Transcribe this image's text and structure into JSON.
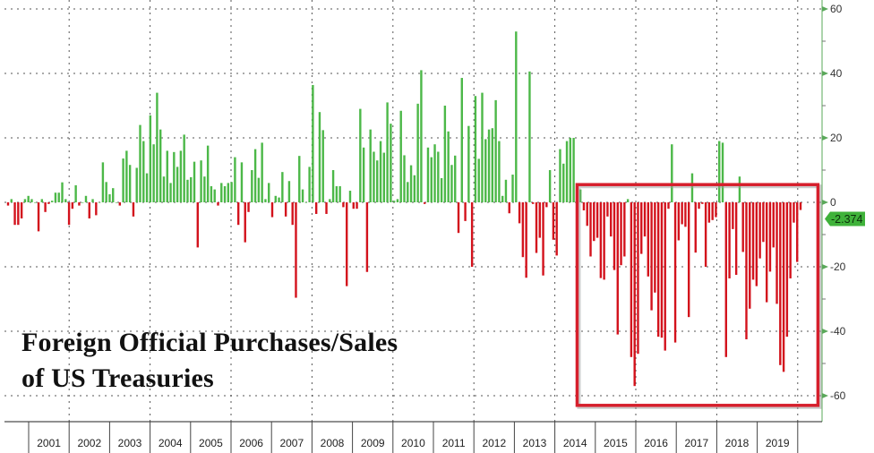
{
  "chart_data": {
    "type": "bar",
    "title": [
      "Foreign Official Purchases/Sales",
      "of US Treasuries"
    ],
    "xlabel": "",
    "ylabel": "",
    "ylim": [
      -68,
      63
    ],
    "yticks": [
      60,
      40,
      20,
      0,
      -20,
      -40,
      -60
    ],
    "x_year_labels": [
      "2001",
      "2002",
      "2003",
      "2004",
      "2005",
      "2006",
      "2007",
      "2008",
      "2009",
      "2010",
      "2011",
      "2012",
      "2013",
      "2014",
      "2015",
      "2016",
      "2017",
      "2018",
      "2019"
    ],
    "grid": true,
    "y_axis_side": "right",
    "last_value_label": "-2.374",
    "colors": {
      "positive": "#4cb848",
      "negative": "#d3121c",
      "axis": "#5aa85a",
      "highlight_box": "#d61f2c",
      "last_value_tag": "#3fb23a"
    },
    "highlight_box": {
      "x_range_years": [
        2014.55,
        2020.5
      ],
      "y_range": [
        -63,
        5.5
      ]
    },
    "values": [
      -1,
      1,
      -7,
      -7,
      -5,
      1,
      2,
      1,
      0,
      -9,
      1,
      -3,
      -0.5,
      0.5,
      3,
      3,
      6.2,
      1,
      -7,
      -2,
      5.3,
      -1,
      0,
      2,
      -5,
      1,
      -4,
      0,
      12.4,
      6.3,
      2.5,
      4.4,
      0,
      -1,
      13.6,
      16,
      11.6,
      -4.4,
      10.7,
      24,
      19,
      9,
      27,
      18,
      34,
      22.6,
      8,
      16,
      6,
      15.6,
      11,
      16,
      21,
      7,
      7.8,
      12.6,
      -14,
      13,
      8,
      17.6,
      5,
      4,
      -1,
      6,
      5,
      6,
      6.3,
      14,
      -7,
      12.4,
      -12.4,
      -3,
      10,
      16.5,
      7.6,
      18.5,
      1,
      6,
      -4.6,
      2,
      1.5,
      9.4,
      -4.4,
      6.6,
      -7,
      -29.6,
      14.4,
      4,
      0,
      11,
      36.4,
      -3.6,
      28,
      22.4,
      -3.6,
      1,
      10,
      5,
      5,
      -1.5,
      -26,
      3.6,
      -2,
      -2,
      29,
      17,
      -21.6,
      22.6,
      15.7,
      13,
      19,
      15.4,
      31,
      24.4,
      0.5,
      1,
      28.4,
      14.6,
      6.3,
      11.5,
      8.4,
      30.6,
      41,
      -0.5,
      17,
      14,
      18,
      15.7,
      7.5,
      30,
      22,
      11.6,
      14.5,
      -9.5,
      38.6,
      -5.8,
      23.7,
      -20,
      33,
      13.5,
      34,
      19.6,
      22.6,
      23,
      31.7,
      19,
      2,
      7,
      -3.4,
      8.6,
      53,
      -6.5,
      -17,
      -23.4,
      40.6,
      -0.5,
      -15.7,
      -11,
      -22.7,
      -1.5,
      10,
      -11.6,
      -16.5,
      16.5,
      12,
      19,
      20,
      20,
      -5.7,
      4,
      -2.5,
      -7.3,
      -16.8,
      -12,
      -11,
      -23.5,
      -24,
      -4.4,
      -10.6,
      -21,
      -41,
      -19.5,
      -16.8,
      1,
      -48,
      -57,
      -47,
      -16,
      -10.6,
      -23,
      -33.5,
      -28,
      -41.7,
      -42,
      -46,
      -2,
      18,
      -43.5,
      -11.8,
      -6.8,
      -7.6,
      -35.6,
      9,
      -15.6,
      -2,
      -0.5,
      -20,
      -6.3,
      -5.5,
      -4.6,
      19,
      18.5,
      -48,
      -23.6,
      -8.3,
      -22.5,
      8,
      -15.4,
      -42.5,
      -33,
      -24,
      -26,
      -17.4,
      -12.3,
      -31,
      -21.5,
      -14,
      -31.5,
      -50.5,
      -52.6,
      -41.7,
      -23.6,
      -6.3,
      -18.5,
      -2.374
    ]
  }
}
